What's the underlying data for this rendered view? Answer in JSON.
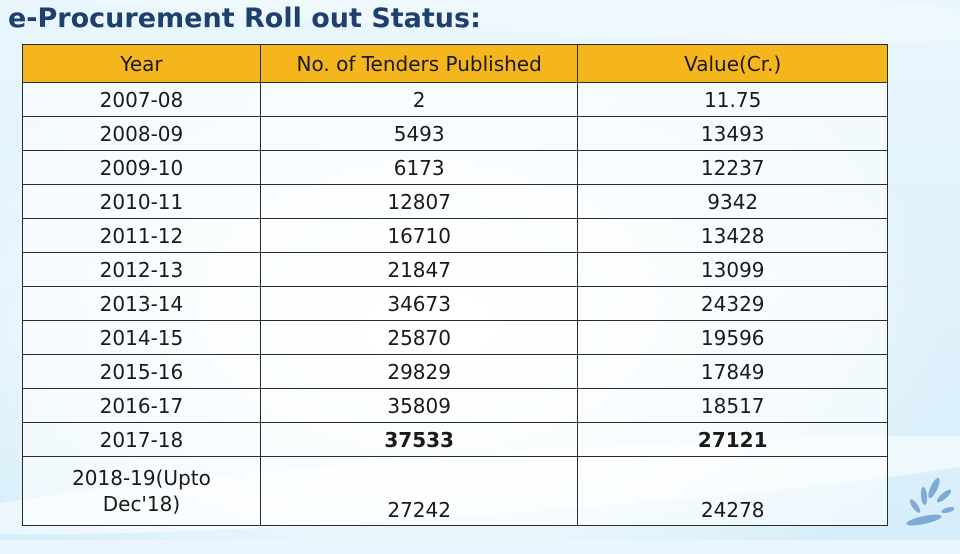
{
  "slide": {
    "title": "e-Procurement Roll out Status:"
  },
  "table": {
    "headers": {
      "year": "Year",
      "tenders": "No. of Tenders Published",
      "value": "Value(Cr.)"
    },
    "rows": [
      {
        "year": "2007-08",
        "tenders": "2",
        "value": "11.75"
      },
      {
        "year": "2008-09",
        "tenders": "5493",
        "value": "13493"
      },
      {
        "year": "2009-10",
        "tenders": "6173",
        "value": "12237"
      },
      {
        "year": "2010-11",
        "tenders": "12807",
        "value": "9342"
      },
      {
        "year": "2011-12",
        "tenders": "16710",
        "value": "13428"
      },
      {
        "year": "2012-13",
        "tenders": "21847",
        "value": "13099"
      },
      {
        "year": "2013-14",
        "tenders": "34673",
        "value": "24329"
      },
      {
        "year": "2014-15",
        "tenders": "25870",
        "value": "19596"
      },
      {
        "year": "2015-16",
        "tenders": "29829",
        "value": "17849"
      },
      {
        "year": "2016-17",
        "tenders": "35809",
        "value": "18517"
      },
      {
        "year": "2017-18",
        "tenders": "37533",
        "value": "27121"
      },
      {
        "year_line1": "2018-19(Upto",
        "year_line2": "Dec'18)",
        "tenders": "27242",
        "value": "24278"
      }
    ]
  },
  "colors": {
    "header_fill": "#f5b51c",
    "title_text": "#1f3f6e",
    "logo_accent": "#7fa9d8"
  },
  "icons": {
    "logo": "decorative-swirl-logo-icon"
  }
}
